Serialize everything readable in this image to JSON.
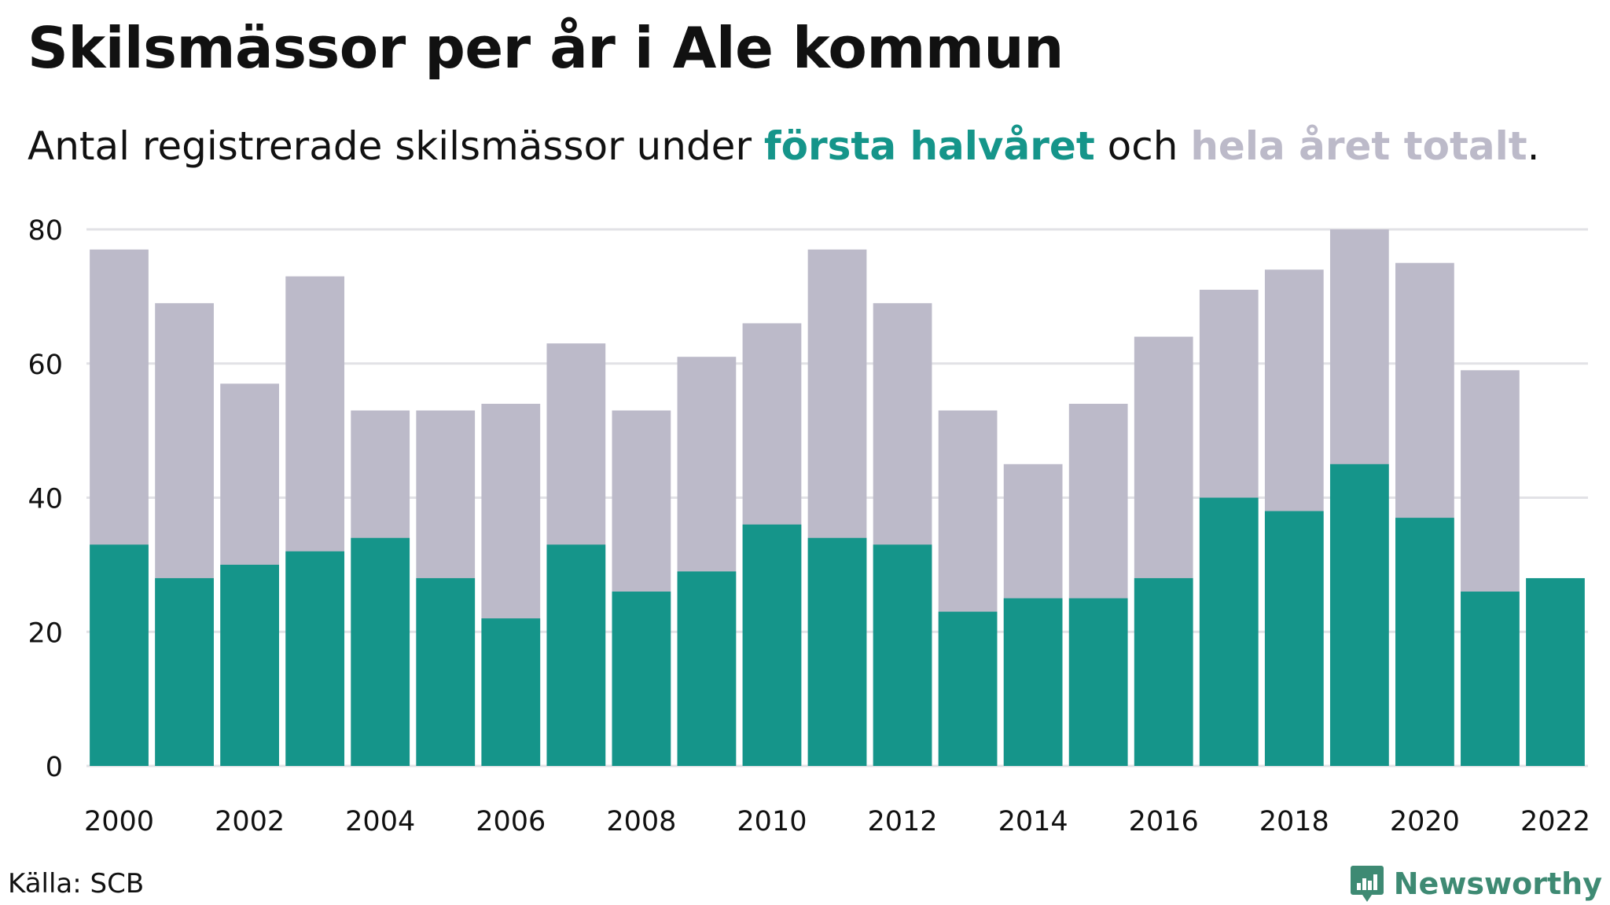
{
  "header": {
    "title": "Skilsmässor per år i Ale kommun",
    "subtitle_prefix": "Antal registrerade skilsmässor under ",
    "subtitle_highlight1": "första halvåret",
    "subtitle_middle": " och ",
    "subtitle_highlight2": "hela året totalt",
    "subtitle_suffix": "."
  },
  "colors": {
    "first_half": "#15958a",
    "full_year": "#bcbac9",
    "grid": "#e2e2e6",
    "brand": "#3e8a73"
  },
  "chart_data": {
    "type": "bar",
    "stacking": "overlay",
    "categories": [
      "2000",
      "2001",
      "2002",
      "2003",
      "2004",
      "2005",
      "2006",
      "2007",
      "2008",
      "2009",
      "2010",
      "2011",
      "2012",
      "2013",
      "2014",
      "2015",
      "2016",
      "2017",
      "2018",
      "2019",
      "2020",
      "2021",
      "2022"
    ],
    "series": [
      {
        "name": "hela året totalt",
        "values": [
          77,
          69,
          57,
          73,
          53,
          53,
          54,
          63,
          53,
          61,
          66,
          77,
          69,
          53,
          45,
          54,
          64,
          71,
          74,
          80,
          75,
          59,
          null
        ]
      },
      {
        "name": "första halvåret",
        "values": [
          33,
          28,
          30,
          32,
          34,
          28,
          22,
          33,
          26,
          29,
          36,
          34,
          33,
          23,
          25,
          25,
          28,
          40,
          38,
          45,
          37,
          26,
          28
        ]
      }
    ],
    "x_tick_labels": [
      "2000",
      "2002",
      "2004",
      "2006",
      "2008",
      "2010",
      "2012",
      "2014",
      "2016",
      "2018",
      "2020",
      "2022"
    ],
    "y_ticks": [
      0,
      20,
      40,
      60,
      80
    ],
    "ylim": [
      0,
      80
    ],
    "grid": true
  },
  "footer": {
    "source": "Källa: SCB",
    "brand": "Newsworthy",
    "brand_icon": "newsworthy-logo-icon"
  }
}
